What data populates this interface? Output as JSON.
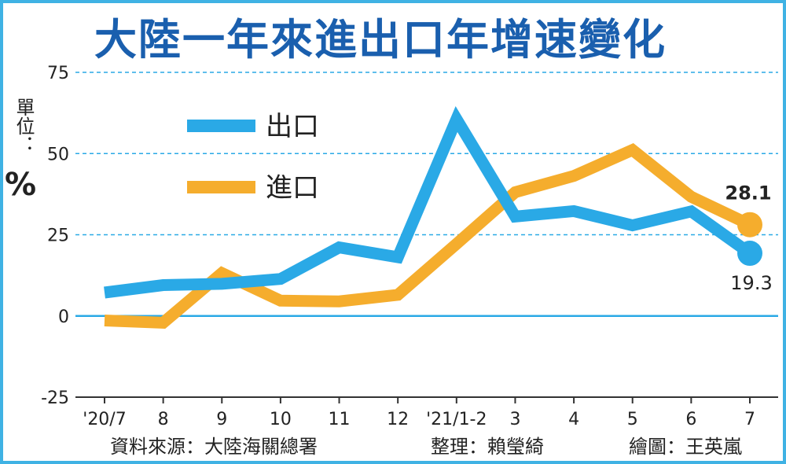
{
  "title": "大陸一年來進出口年增速變化",
  "unit": {
    "label": "單位：",
    "symbol": "%"
  },
  "credits": {
    "source": "資料來源：大陸海關總署",
    "editor": "整理：賴瑩綺",
    "illustrator": "繪圖：王英嵐"
  },
  "chart_data": {
    "type": "line",
    "title": "大陸一年來進出口年增速變化",
    "ylabel": "單位：%",
    "xlabel": "",
    "categories": [
      "'20/7",
      "8",
      "9",
      "10",
      "11",
      "12",
      "'21/1-2",
      "3",
      "4",
      "5",
      "6",
      "7"
    ],
    "ylim": [
      -25,
      75
    ],
    "yticks": [
      75,
      50,
      25,
      0,
      -25
    ],
    "grid": "horizontal dashed",
    "legend": "top-left",
    "series": [
      {
        "name": "出口",
        "color": "#2aa9e6",
        "values": [
          7.2,
          9.5,
          9.9,
          11.4,
          21.1,
          18.1,
          60.6,
          30.6,
          32.3,
          27.9,
          32.2,
          19.3
        ],
        "end_label": "19.3"
      },
      {
        "name": "進口",
        "color": "#f5ad2d",
        "values": [
          -1.4,
          -2.1,
          13.2,
          4.7,
          4.5,
          6.5,
          22.2,
          38.1,
          43.1,
          51.1,
          36.7,
          28.1
        ],
        "end_label": "28.1"
      }
    ],
    "colors": {
      "zero_line": "#2aa9e6",
      "grid": "#2aa9e6",
      "axis": "#333333"
    }
  }
}
